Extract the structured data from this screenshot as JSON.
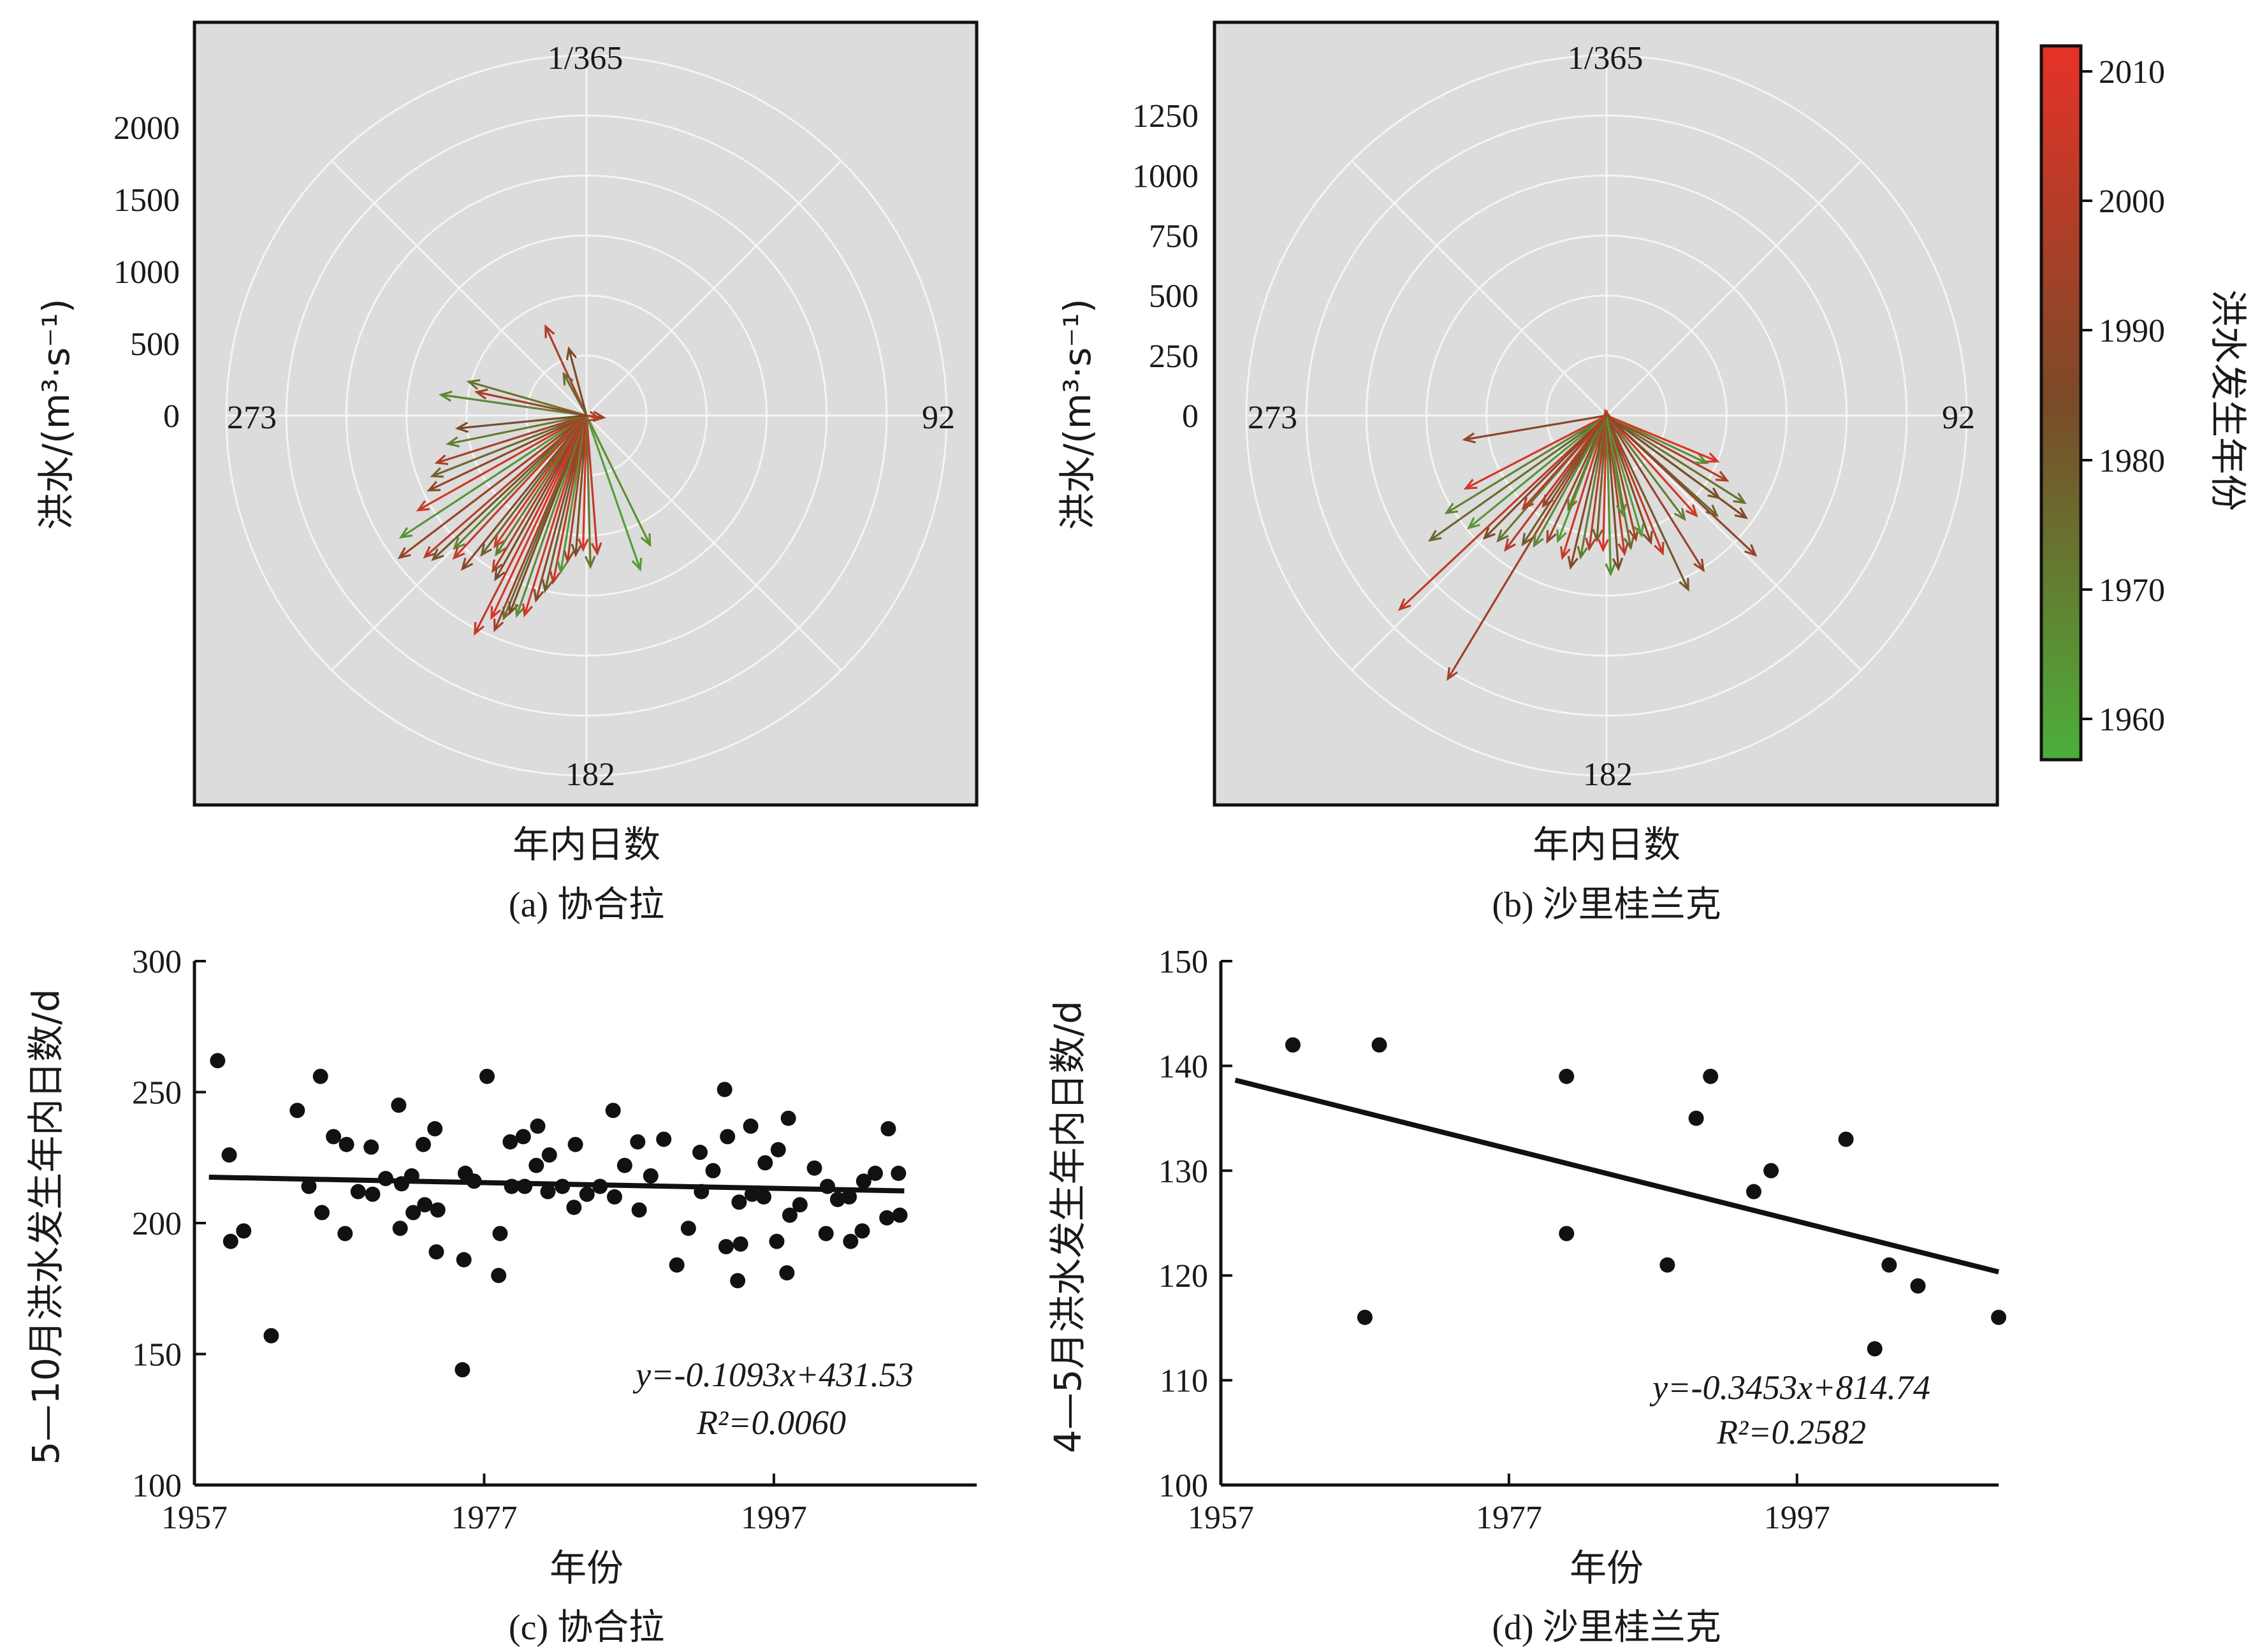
{
  "colorbar": {
    "title": "洪水发生年份",
    "ticks": [
      "2010",
      "2000",
      "1990",
      "1980",
      "1970",
      "1960"
    ],
    "color_start": "#4caf3a",
    "color_end": "#e63228",
    "color_mid": "#7a4a28"
  },
  "chart_data": [
    {
      "type": "polar-vector",
      "panel": "a",
      "caption": "(a) 协合拉",
      "xlabel": "年内日数",
      "ylabel": "洪水/(m³·s⁻¹)",
      "radial_ticks": [
        "2000",
        "1500",
        "1000",
        "500",
        "0"
      ],
      "rmax": 2500,
      "angle_labels": {
        "top": "1/365",
        "right": "92",
        "bottom": "182",
        "left": "273"
      },
      "vectors": [
        {
          "day": 340,
          "q": 680,
          "year": 1998
        },
        {
          "day": 350,
          "q": 480,
          "year": 1985
        },
        {
          "day": 336,
          "q": 330,
          "year": 1975
        },
        {
          "day": 282,
          "q": 1020,
          "year": 1966
        },
        {
          "day": 290,
          "q": 850,
          "year": 1972
        },
        {
          "day": 286,
          "q": 780,
          "year": 1995
        },
        {
          "day": 240,
          "q": 1540,
          "year": 1963
        },
        {
          "day": 236,
          "q": 1630,
          "year": 1992
        },
        {
          "day": 232,
          "q": 1490,
          "year": 2001
        },
        {
          "day": 230,
          "q": 1460,
          "year": 1980
        },
        {
          "day": 228,
          "q": 1300,
          "year": 1968
        },
        {
          "day": 226,
          "q": 1350,
          "year": 2005
        },
        {
          "day": 222,
          "q": 1370,
          "year": 1988
        },
        {
          "day": 220,
          "q": 1210,
          "year": 1977
        },
        {
          "day": 218,
          "q": 1110,
          "year": 2008
        },
        {
          "day": 216,
          "q": 1150,
          "year": 1970
        },
        {
          "day": 214,
          "q": 1260,
          "year": 1999
        },
        {
          "day": 212,
          "q": 1300,
          "year": 1983
        },
        {
          "day": 210,
          "q": 1700,
          "year": 2003
        },
        {
          "day": 208,
          "q": 1550,
          "year": 2010
        },
        {
          "day": 206,
          "q": 1620,
          "year": 1994
        },
        {
          "day": 205,
          "q": 1520,
          "year": 1974
        },
        {
          "day": 204,
          "q": 1470,
          "year": 1986
        },
        {
          "day": 202,
          "q": 1470,
          "year": 1965
        },
        {
          "day": 200,
          "q": 1450,
          "year": 2007
        },
        {
          "day": 198,
          "q": 1330,
          "year": 1990
        },
        {
          "day": 196,
          "q": 1250,
          "year": 1979
        },
        {
          "day": 194,
          "q": 1180,
          "year": 2002
        },
        {
          "day": 192,
          "q": 1100,
          "year": 1961
        },
        {
          "day": 190,
          "q": 1020,
          "year": 1996
        },
        {
          "day": 187,
          "q": 970,
          "year": 1982
        },
        {
          "day": 184,
          "q": 930,
          "year": 2009
        },
        {
          "day": 181,
          "q": 1050,
          "year": 1971
        },
        {
          "day": 178,
          "q": 960,
          "year": 2004
        },
        {
          "day": 163,
          "q": 1130,
          "year": 1960
        },
        {
          "day": 156,
          "q": 1000,
          "year": 1964
        },
        {
          "day": 244,
          "q": 1340,
          "year": 2006
        },
        {
          "day": 248,
          "q": 1210,
          "year": 1989
        },
        {
          "day": 252,
          "q": 1150,
          "year": 1976
        },
        {
          "day": 256,
          "q": 1090,
          "year": 1997
        },
        {
          "day": 262,
          "q": 980,
          "year": 1969
        },
        {
          "day": 268,
          "q": 900,
          "year": 1984
        },
        {
          "day": 98,
          "q": 120,
          "year": 1993
        },
        {
          "day": 105,
          "q": 90,
          "year": 2000
        }
      ]
    },
    {
      "type": "polar-vector",
      "panel": "b",
      "caption": "(b) 沙里桂兰克",
      "xlabel": "年内日数",
      "ylabel": "洪水/(m³·s⁻¹)",
      "radial_ticks": [
        "1250",
        "1000",
        "750",
        "500",
        "250",
        "0"
      ],
      "rmax": 1500,
      "angle_labels": {
        "top": "1/365",
        "right": "92",
        "bottom": "182",
        "left": "273"
      },
      "vectors": [
        {
          "day": 350,
          "q": 20,
          "year": 2005
        },
        {
          "day": 5,
          "q": 15,
          "year": 1998
        },
        {
          "day": 264,
          "q": 600,
          "year": 1990
        },
        {
          "day": 230,
          "q": 1180,
          "year": 2003
        },
        {
          "day": 214,
          "q": 1280,
          "year": 1995
        },
        {
          "day": 238,
          "q": 900,
          "year": 1975
        },
        {
          "day": 242,
          "q": 780,
          "year": 1968
        },
        {
          "day": 246,
          "q": 660,
          "year": 2008
        },
        {
          "day": 234,
          "q": 740,
          "year": 1962
        },
        {
          "day": 228,
          "q": 720,
          "year": 1985
        },
        {
          "day": 224,
          "q": 690,
          "year": 1972
        },
        {
          "day": 220,
          "q": 700,
          "year": 2001
        },
        {
          "day": 216,
          "q": 640,
          "year": 1979
        },
        {
          "day": 212,
          "q": 620,
          "year": 1966
        },
        {
          "day": 208,
          "q": 580,
          "year": 1993
        },
        {
          "day": 204,
          "q": 560,
          "year": 1961
        },
        {
          "day": 200,
          "q": 620,
          "year": 2006
        },
        {
          "day": 196,
          "q": 650,
          "year": 1987
        },
        {
          "day": 193,
          "q": 600,
          "year": 1970
        },
        {
          "day": 190,
          "q": 560,
          "year": 1999
        },
        {
          "day": 187,
          "q": 520,
          "year": 1977
        },
        {
          "day": 184,
          "q": 560,
          "year": 2009
        },
        {
          "day": 181,
          "q": 660,
          "year": 1964
        },
        {
          "day": 178,
          "q": 640,
          "year": 1983
        },
        {
          "day": 175,
          "q": 580,
          "year": 2002
        },
        {
          "day": 172,
          "q": 560,
          "year": 1974
        },
        {
          "day": 169,
          "q": 530,
          "year": 1996
        },
        {
          "day": 166,
          "q": 520,
          "year": 1960
        },
        {
          "day": 163,
          "q": 560,
          "year": 1988
        },
        {
          "day": 160,
          "q": 620,
          "year": 2004
        },
        {
          "day": 157,
          "q": 800,
          "year": 1980
        },
        {
          "day": 150,
          "q": 760,
          "year": 1992
        },
        {
          "day": 145,
          "q": 540,
          "year": 1969
        },
        {
          "day": 140,
          "q": 560,
          "year": 2007
        },
        {
          "day": 134,
          "q": 620,
          "year": 1976
        },
        {
          "day": 128,
          "q": 720,
          "year": 1985
        },
        {
          "day": 124,
          "q": 680,
          "year": 1973
        },
        {
          "day": 120,
          "q": 570,
          "year": 1997
        },
        {
          "day": 117,
          "q": 460,
          "year": 1965
        },
        {
          "day": 114,
          "q": 500,
          "year": 2010
        },
        {
          "day": 135,
          "q": 850,
          "year": 1990
        },
        {
          "day": 128,
          "q": 580,
          "year": 1982
        },
        {
          "day": 173,
          "q": 420,
          "year": 1963
        },
        {
          "day": 205,
          "q": 420,
          "year": 1971
        },
        {
          "day": 218,
          "q": 460,
          "year": 1994
        },
        {
          "day": 225,
          "q": 520,
          "year": 2000
        }
      ]
    },
    {
      "type": "scatter",
      "panel": "c",
      "caption": "(c) 协合拉",
      "xlabel": "年份",
      "ylabel": "5—10月洪水发生年内日数/d",
      "xlim": [
        1957,
        2011
      ],
      "ylim": [
        100,
        300
      ],
      "xticks": [
        1957,
        1977,
        1997
      ],
      "yticks": [
        100,
        150,
        200,
        250,
        300
      ],
      "equation": "y=-0.1093x+431.53",
      "r2": "R²=0.0060",
      "trend": {
        "slope": -0.1093,
        "intercept": 431.53
      },
      "points": [
        [
          1958.6,
          262
        ],
        [
          1959.4,
          226
        ],
        [
          1959.5,
          193
        ],
        [
          1960.4,
          197
        ],
        [
          1962.3,
          157
        ],
        [
          1964.1,
          243
        ],
        [
          1964.9,
          214
        ],
        [
          1965.7,
          256
        ],
        [
          1965.8,
          204
        ],
        [
          1966.6,
          233
        ],
        [
          1967.4,
          196
        ],
        [
          1967.5,
          230
        ],
        [
          1968.3,
          212
        ],
        [
          1969.2,
          229
        ],
        [
          1969.3,
          211
        ],
        [
          1970.2,
          217
        ],
        [
          1971.1,
          245
        ],
        [
          1971.2,
          198
        ],
        [
          1971.3,
          215
        ],
        [
          1972.0,
          218
        ],
        [
          1972.1,
          204
        ],
        [
          1972.8,
          230
        ],
        [
          1972.9,
          207
        ],
        [
          1973.6,
          236
        ],
        [
          1973.7,
          189
        ],
        [
          1973.8,
          205
        ],
        [
          1975.5,
          144
        ],
        [
          1975.6,
          186
        ],
        [
          1975.7,
          219
        ],
        [
          1976.3,
          216
        ],
        [
          1977.2,
          256
        ],
        [
          1978.1,
          196
        ],
        [
          1978.0,
          180
        ],
        [
          1978.8,
          231
        ],
        [
          1978.9,
          214
        ],
        [
          1979.7,
          233
        ],
        [
          1979.8,
          214
        ],
        [
          1980.6,
          222
        ],
        [
          1980.7,
          237
        ],
        [
          1981.4,
          212
        ],
        [
          1981.5,
          226
        ],
        [
          1982.4,
          214
        ],
        [
          1983.3,
          230
        ],
        [
          1983.2,
          206
        ],
        [
          1984.1,
          211
        ],
        [
          1985.0,
          214
        ],
        [
          1985.9,
          243
        ],
        [
          1986.0,
          210
        ],
        [
          1986.7,
          222
        ],
        [
          1987.6,
          231
        ],
        [
          1987.7,
          205
        ],
        [
          1988.5,
          218
        ],
        [
          1989.4,
          232
        ],
        [
          1990.3,
          184
        ],
        [
          1991.1,
          198
        ],
        [
          1991.9,
          227
        ],
        [
          1992.0,
          212
        ],
        [
          1992.8,
          220
        ],
        [
          1993.6,
          251
        ],
        [
          1993.7,
          191
        ],
        [
          1993.8,
          233
        ],
        [
          1994.6,
          208
        ],
        [
          1994.5,
          178
        ],
        [
          1994.7,
          192
        ],
        [
          1995.4,
          237
        ],
        [
          1995.5,
          211
        ],
        [
          1996.3,
          210
        ],
        [
          1996.4,
          223
        ],
        [
          1997.2,
          193
        ],
        [
          1997.3,
          228
        ],
        [
          1997.9,
          181
        ],
        [
          1998.0,
          240
        ],
        [
          1998.1,
          203
        ],
        [
          1998.8,
          207
        ],
        [
          1999.8,
          221
        ],
        [
          2000.6,
          196
        ],
        [
          2000.7,
          214
        ],
        [
          2001.4,
          209
        ],
        [
          2002.3,
          193
        ],
        [
          2002.2,
          210
        ],
        [
          2003.1,
          197
        ],
        [
          2003.2,
          216
        ],
        [
          2004.0,
          219
        ],
        [
          2004.9,
          236
        ],
        [
          2004.8,
          202
        ],
        [
          2005.7,
          203
        ],
        [
          2005.6,
          219
        ]
      ]
    },
    {
      "type": "scatter",
      "panel": "d",
      "caption": "(d) 沙里桂兰克",
      "xlabel": "年份",
      "ylabel": "4—5月洪水发生年内日数/d",
      "xlim": [
        1957,
        2011
      ],
      "ylim": [
        100,
        150
      ],
      "xticks": [
        1957,
        1977,
        1997
      ],
      "yticks": [
        100,
        110,
        120,
        130,
        140,
        150
      ],
      "equation": "y=-0.3453x+814.74",
      "r2": "R²=0.2582",
      "trend": {
        "slope": -0.3453,
        "intercept": 814.74
      },
      "points": [
        [
          1962,
          142
        ],
        [
          1967,
          116
        ],
        [
          1968,
          142
        ],
        [
          1981,
          139
        ],
        [
          1981,
          124
        ],
        [
          1988,
          121
        ],
        [
          1990,
          135
        ],
        [
          1991,
          139
        ],
        [
          1994,
          128
        ],
        [
          1995.2,
          130
        ],
        [
          2000.4,
          133
        ],
        [
          2002.4,
          113
        ],
        [
          2003.4,
          121
        ],
        [
          2005.4,
          119
        ],
        [
          2011,
          116
        ]
      ]
    }
  ]
}
